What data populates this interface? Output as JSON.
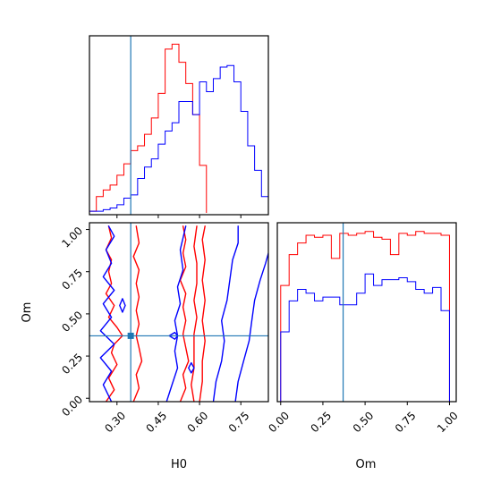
{
  "chart_data": {
    "type": "corner",
    "parameters": [
      "H0",
      "Om"
    ],
    "axes": {
      "H0": {
        "label": "H0",
        "range": [
          0.2,
          0.85
        ],
        "ticks": [
          0.3,
          0.45,
          0.6,
          0.75
        ],
        "tick_labels": [
          "0.30",
          "0.45",
          "0.60",
          "0.75"
        ]
      },
      "Om": {
        "label": "Om",
        "range": [
          -0.02,
          1.04
        ],
        "ticks": [
          0.0,
          0.25,
          0.5,
          0.75,
          1.0
        ],
        "tick_labels": [
          "0.00",
          "0.25",
          "0.50",
          "0.75",
          "1.00"
        ]
      }
    },
    "truth": {
      "H0": 0.35,
      "Om": 0.37,
      "color": "#1f77b4"
    },
    "series": [
      {
        "color": "#ff0000",
        "hist_H0": {
          "edges": [
            0.2,
            0.225,
            0.25,
            0.275,
            0.3,
            0.325,
            0.35,
            0.375,
            0.4,
            0.425,
            0.45,
            0.475,
            0.5,
            0.525,
            0.55,
            0.575,
            0.6,
            0.625
          ],
          "counts": [
            1,
            10,
            14,
            17,
            23,
            30,
            38,
            41,
            48,
            58,
            73,
            100,
            103,
            92,
            79,
            60,
            29,
            0
          ]
        },
        "hist_Om": {
          "edges": [
            0.0,
            0.05,
            0.1,
            0.15,
            0.2,
            0.25,
            0.3,
            0.35,
            0.4,
            0.45,
            0.5,
            0.55,
            0.6,
            0.65,
            0.7,
            0.75,
            0.8,
            0.85,
            0.9,
            0.95,
            1.0
          ],
          "counts": [
            62,
            78,
            84,
            88,
            87,
            88,
            76,
            89,
            88,
            89,
            90,
            87,
            86,
            78,
            89,
            88,
            90,
            89,
            89,
            88
          ]
        },
        "contours": [
          [
            [
              0.26,
              -0.02
            ],
            [
              0.29,
              0.05
            ],
            [
              0.27,
              0.12
            ],
            [
              0.3,
              0.2
            ],
            [
              0.28,
              0.27
            ],
            [
              0.29,
              0.32
            ],
            [
              0.32,
              0.37
            ],
            [
              0.3,
              0.42
            ],
            [
              0.27,
              0.48
            ],
            [
              0.29,
              0.55
            ],
            [
              0.26,
              0.62
            ],
            [
              0.28,
              0.68
            ],
            [
              0.27,
              0.75
            ],
            [
              0.28,
              0.82
            ],
            [
              0.26,
              0.88
            ],
            [
              0.28,
              0.95
            ],
            [
              0.27,
              1.02
            ]
          ],
          [
            [
              0.36,
              -0.02
            ],
            [
              0.38,
              0.06
            ],
            [
              0.37,
              0.14
            ],
            [
              0.39,
              0.22
            ],
            [
              0.38,
              0.3
            ],
            [
              0.37,
              0.37
            ],
            [
              0.38,
              0.44
            ],
            [
              0.37,
              0.52
            ],
            [
              0.38,
              0.6
            ],
            [
              0.37,
              0.68
            ],
            [
              0.38,
              0.76
            ],
            [
              0.36,
              0.84
            ],
            [
              0.38,
              0.92
            ],
            [
              0.37,
              1.02
            ]
          ],
          [
            [
              0.53,
              -0.02
            ],
            [
              0.55,
              0.06
            ],
            [
              0.54,
              0.14
            ],
            [
              0.56,
              0.22
            ],
            [
              0.55,
              0.3
            ],
            [
              0.54,
              0.38
            ],
            [
              0.55,
              0.46
            ],
            [
              0.54,
              0.54
            ],
            [
              0.55,
              0.62
            ],
            [
              0.53,
              0.7
            ],
            [
              0.55,
              0.78
            ],
            [
              0.54,
              0.86
            ],
            [
              0.55,
              0.94
            ],
            [
              0.54,
              1.02
            ]
          ],
          [
            [
              0.58,
              -0.02
            ],
            [
              0.57,
              0.08
            ],
            [
              0.58,
              0.18
            ],
            [
              0.58,
              0.28
            ],
            [
              0.58,
              0.38
            ],
            [
              0.59,
              0.48
            ],
            [
              0.58,
              0.58
            ],
            [
              0.59,
              0.68
            ],
            [
              0.59,
              0.8
            ],
            [
              0.58,
              0.9
            ],
            [
              0.59,
              1.02
            ]
          ],
          [
            [
              0.6,
              -0.02
            ],
            [
              0.61,
              0.1
            ],
            [
              0.61,
              0.22
            ],
            [
              0.62,
              0.34
            ],
            [
              0.61,
              0.46
            ],
            [
              0.62,
              0.58
            ],
            [
              0.61,
              0.7
            ],
            [
              0.62,
              0.82
            ],
            [
              0.61,
              0.94
            ],
            [
              0.62,
              1.02
            ]
          ]
        ]
      },
      {
        "color": "#0000ff",
        "hist_H0": {
          "edges": [
            0.2,
            0.225,
            0.25,
            0.275,
            0.3,
            0.325,
            0.35,
            0.375,
            0.4,
            0.425,
            0.45,
            0.475,
            0.5,
            0.525,
            0.55,
            0.575,
            0.6,
            0.625,
            0.65,
            0.675,
            0.7,
            0.725,
            0.75,
            0.775,
            0.8,
            0.825,
            0.85
          ],
          "counts": [
            1,
            1,
            2,
            3,
            5,
            9,
            11,
            21,
            28,
            33,
            42,
            50,
            55,
            68,
            68,
            60,
            80,
            74,
            82,
            89,
            90,
            80,
            62,
            41,
            26,
            10,
            4
          ]
        },
        "hist_Om": {
          "edges": [
            0.0,
            0.05,
            0.1,
            0.15,
            0.2,
            0.25,
            0.3,
            0.35,
            0.4,
            0.45,
            0.5,
            0.55,
            0.6,
            0.65,
            0.7,
            0.75,
            0.8,
            0.85,
            0.9,
            0.95,
            1.0
          ],
          "counts": [
            38,
            54,
            60,
            58,
            54,
            56,
            56,
            52,
            52,
            58,
            68,
            62,
            65,
            65,
            66,
            64,
            60,
            58,
            61,
            49
          ]
        },
        "contours": [
          [
            [
              0.28,
              -0.02
            ],
            [
              0.25,
              0.08
            ],
            [
              0.28,
              0.16
            ],
            [
              0.24,
              0.24
            ],
            [
              0.29,
              0.32
            ],
            [
              0.24,
              0.4
            ],
            [
              0.28,
              0.48
            ],
            [
              0.25,
              0.56
            ],
            [
              0.29,
              0.64
            ],
            [
              0.25,
              0.72
            ],
            [
              0.28,
              0.8
            ],
            [
              0.26,
              0.88
            ],
            [
              0.29,
              0.96
            ],
            [
              0.27,
              1.02
            ]
          ],
          [
            [
              0.48,
              -0.02
            ],
            [
              0.5,
              0.08
            ],
            [
              0.52,
              0.18
            ],
            [
              0.51,
              0.28
            ],
            [
              0.52,
              0.37
            ],
            [
              0.51,
              0.46
            ],
            [
              0.53,
              0.56
            ],
            [
              0.52,
              0.66
            ],
            [
              0.54,
              0.76
            ],
            [
              0.53,
              0.88
            ],
            [
              0.55,
              1.02
            ]
          ],
          [
            [
              0.65,
              -0.02
            ],
            [
              0.66,
              0.1
            ],
            [
              0.68,
              0.22
            ],
            [
              0.69,
              0.34
            ],
            [
              0.68,
              0.46
            ],
            [
              0.7,
              0.58
            ],
            [
              0.71,
              0.7
            ],
            [
              0.72,
              0.82
            ],
            [
              0.74,
              0.92
            ],
            [
              0.74,
              1.02
            ]
          ],
          [
            [
              0.73,
              -0.02
            ],
            [
              0.74,
              0.1
            ],
            [
              0.76,
              0.22
            ],
            [
              0.78,
              0.34
            ],
            [
              0.79,
              0.46
            ],
            [
              0.8,
              0.58
            ],
            [
              0.82,
              0.7
            ],
            [
              0.84,
              0.8
            ],
            [
              0.85,
              0.86
            ]
          ],
          [
            [
              0.31,
              0.55
            ],
            [
              0.32,
              0.59
            ],
            [
              0.33,
              0.55
            ],
            [
              0.32,
              0.51
            ],
            [
              0.31,
              0.55
            ]
          ],
          [
            [
              0.49,
              0.37
            ],
            [
              0.51,
              0.39
            ],
            [
              0.52,
              0.37
            ],
            [
              0.51,
              0.35
            ],
            [
              0.49,
              0.37
            ]
          ],
          [
            [
              0.56,
              0.18
            ],
            [
              0.57,
              0.21
            ],
            [
              0.58,
              0.18
            ],
            [
              0.57,
              0.15
            ],
            [
              0.56,
              0.18
            ]
          ]
        ]
      }
    ]
  }
}
